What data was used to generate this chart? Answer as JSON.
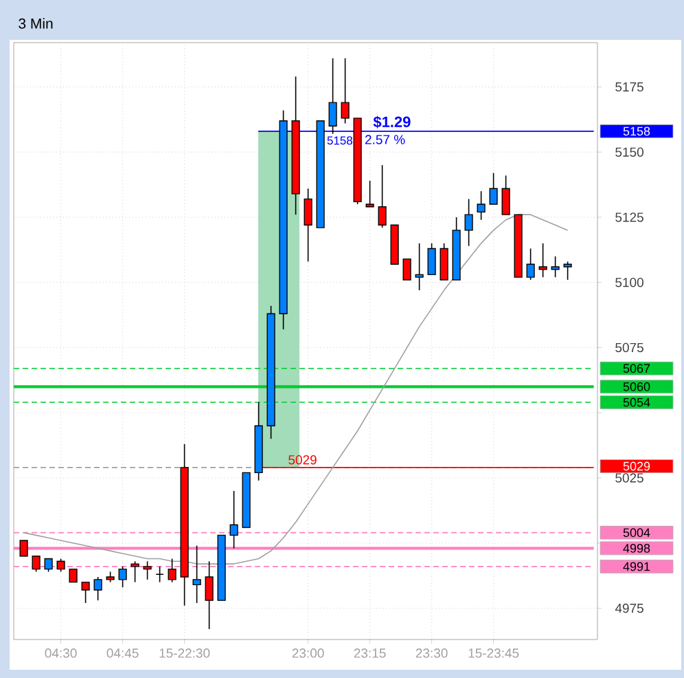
{
  "chart_data": {
    "type": "candlestick",
    "title": "3 Min",
    "categories": [
      null,
      null,
      null,
      "04:30",
      null,
      null,
      null,
      null,
      "04:45",
      null,
      null,
      null,
      null,
      "15-22:30",
      null,
      null,
      null,
      null,
      null,
      null,
      null,
      null,
      null,
      "23:00",
      null,
      null,
      null,
      null,
      "23:15",
      null,
      null,
      null,
      null,
      "23:30",
      null,
      null,
      null,
      null,
      "15-23:45",
      null,
      null,
      null,
      null,
      null,
      null
    ],
    "ohlc": [
      [
        5001,
        5001,
        4995,
        4995
      ],
      [
        4995,
        4995,
        4989,
        4990
      ],
      [
        4990,
        4994,
        4989,
        4994
      ],
      [
        4993,
        4994,
        4989,
        4990
      ],
      [
        4990,
        4990,
        4985,
        4985
      ],
      [
        4985,
        4985,
        4977,
        4982
      ],
      [
        4982,
        4987,
        4978,
        4986
      ],
      [
        4987,
        4989,
        4985,
        4986
      ],
      [
        4986,
        4991,
        4983,
        4990
      ],
      [
        4992,
        4993,
        4985,
        4991
      ],
      [
        4991,
        4993,
        4986,
        4990
      ],
      [
        4988,
        4991,
        4985,
        4988
      ],
      [
        4990,
        4994,
        4985,
        4986
      ],
      [
        5029,
        5038,
        4976,
        4987
      ],
      [
        4984,
        4999,
        4977,
        4986
      ],
      [
        4987,
        4993,
        4967,
        4978
      ],
      [
        4978,
        5003,
        4978,
        5003
      ],
      [
        5003,
        5020,
        4998,
        5007
      ],
      [
        5006,
        5027,
        5006,
        5027
      ],
      [
        5027,
        5054,
        5024,
        5045
      ],
      [
        5045,
        5091,
        5040,
        5088
      ],
      [
        5088,
        5166,
        5082,
        5162
      ],
      [
        5162,
        5179,
        5126,
        5134
      ],
      [
        5132,
        5136,
        5108,
        5122
      ],
      [
        5121,
        5162,
        5121,
        5162
      ],
      [
        5160,
        5186,
        5157,
        5169
      ],
      [
        5169,
        5186,
        5161,
        5163
      ],
      [
        5163,
        5163,
        5130,
        5131
      ],
      [
        5130,
        5139,
        5129,
        5129
      ],
      [
        5129,
        5145,
        5121,
        5122
      ],
      [
        5122,
        5122,
        5107,
        5107
      ],
      [
        5109,
        5109,
        5101,
        5101
      ],
      [
        5102,
        5115,
        5097,
        5103
      ],
      [
        5103,
        5115,
        5103,
        5113
      ],
      [
        5113,
        5115,
        5101,
        5101
      ],
      [
        5101,
        5125,
        5101,
        5120
      ],
      [
        5120,
        5132,
        5114,
        5126
      ],
      [
        5127,
        5135,
        5124,
        5130
      ],
      [
        5130,
        5142,
        5130,
        5136
      ],
      [
        5136,
        5141,
        5126,
        5126
      ],
      [
        5126,
        5126,
        5102,
        5102
      ],
      [
        5102,
        5113,
        5101,
        5107
      ],
      [
        5106,
        5115,
        5102,
        5105
      ],
      [
        5105,
        5110,
        5102,
        5106
      ],
      [
        5106,
        5108,
        5101,
        5107
      ]
    ],
    "colors": [
      "#ff0000",
      "#ff0000",
      "#0080ff",
      "#ff0000",
      "#ff0000",
      "#ff0000",
      "#0080ff",
      "#ff0000",
      "#0080ff",
      "#ff0000",
      "#ff0000",
      "#000000",
      "#ff0000",
      "#ff0000",
      "#0080ff",
      "#ff0000",
      "#0080ff",
      "#0080ff",
      "#0080ff",
      "#0080ff",
      "#0080ff",
      "#0080ff",
      "#ff0000",
      "#ff0000",
      "#0080ff",
      "#0080ff",
      "#ff0000",
      "#ff0000",
      "#ff0000",
      "#ff0000",
      "#ff0000",
      "#ff0000",
      "#0080ff",
      "#0080ff",
      "#ff0000",
      "#0080ff",
      "#0080ff",
      "#0080ff",
      "#0080ff",
      "#ff0000",
      "#ff0000",
      "#0080ff",
      "#ff0000",
      "#0080ff",
      "#0080ff"
    ],
    "series": [
      {
        "type": "line",
        "color": "#a0a0a0",
        "values": [
          5004,
          5003,
          5002,
          5001,
          5000,
          4999,
          4998,
          4997,
          4996,
          4995,
          4994,
          4994,
          4993,
          4993,
          4992,
          4992,
          4992,
          4992,
          4993,
          4994,
          4997,
          5002,
          5008,
          5015,
          5022,
          5029,
          5036,
          5043,
          5051,
          5059,
          5067,
          5075,
          5083,
          5090,
          5097,
          5103,
          5109,
          5115,
          5120,
          5124,
          5126,
          5126,
          5124,
          5122,
          5120
        ]
      }
    ],
    "ylim": [
      4963,
      5192
    ],
    "yticks": [
      4975,
      {
        "value": 5000,
        "label": null
      },
      5025,
      {
        "value": 5050,
        "label": null
      },
      5075,
      5100,
      5125,
      5150,
      5175
    ],
    "grid": true,
    "ref_lines": [
      {
        "axis": "y",
        "value": 5158,
        "label": "5158",
        "color": "#0000ff",
        "line_style": "solid"
      },
      {
        "axis": "y",
        "value": 5029,
        "label": "5029",
        "color": "#ff0000",
        "line_style": "solid"
      },
      {
        "axis": "y",
        "value": 5029,
        "color": "#a0a0a0",
        "line_style": "dashed"
      },
      {
        "axis": "y",
        "value": 5067,
        "label": "5067",
        "color": "#00cc33",
        "line_style": "dashed"
      },
      {
        "axis": "y",
        "value": 5060,
        "label": "5060",
        "color": "#00cc33",
        "line_style": "solid"
      },
      {
        "axis": "y",
        "value": 5054,
        "label": "5054",
        "color": "#00cc33",
        "line_style": "dashed"
      },
      {
        "axis": "y",
        "value": 5004,
        "label": "5004",
        "color": "#ff80c0",
        "line_style": "dashed"
      },
      {
        "axis": "y",
        "value": 4998,
        "label": "4998",
        "color": "#ff80c0",
        "line_style": "solid"
      },
      {
        "axis": "y",
        "value": 4991,
        "label": "4991",
        "color": "#ff80c0",
        "line_style": "dashed"
      }
    ],
    "bands": [
      {
        "axis": "y",
        "from": 5029,
        "to": 5158,
        "color": "#a3dcb8"
      }
    ],
    "annotations": [
      {
        "text": "$1.29",
        "y": 5158
      },
      {
        "text": "2.57 %",
        "y": 5158
      },
      {
        "text": "5158",
        "y": 5158
      },
      {
        "text": "5029",
        "y": 5029
      }
    ]
  }
}
